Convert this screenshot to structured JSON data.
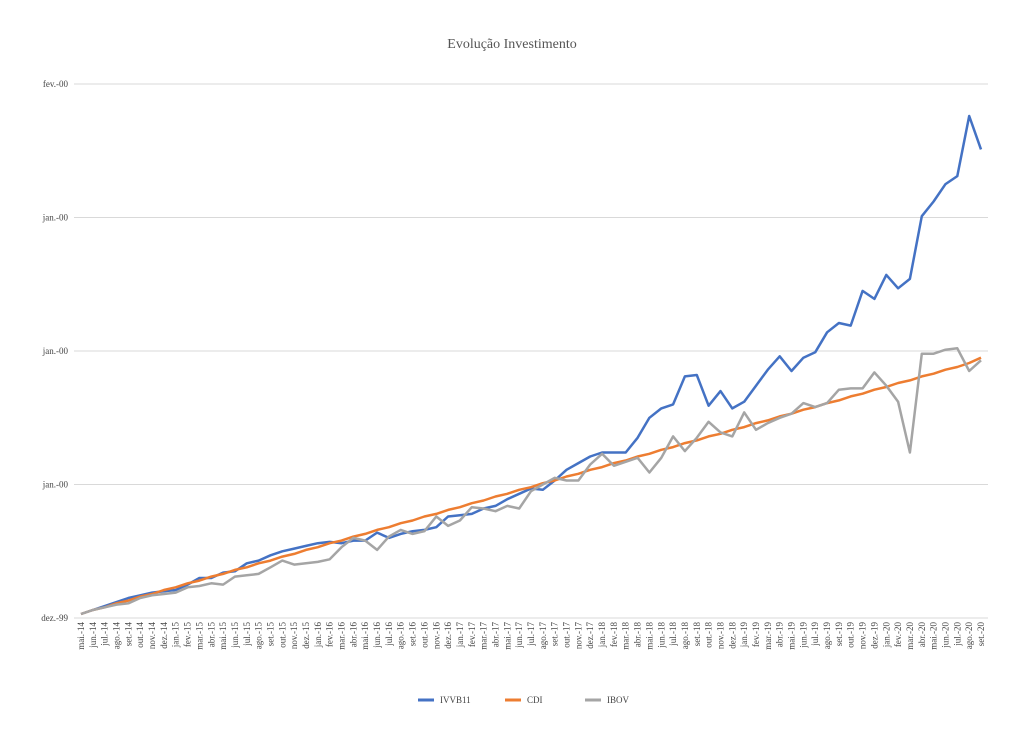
{
  "chart_data": {
    "type": "line",
    "title": "Evolução Investimento",
    "categories": [
      "mai.-14",
      "jun.-14",
      "jul.-14",
      "ago.-14",
      "set.-14",
      "out.-14",
      "nov.-14",
      "dez.-14",
      "jan.-15",
      "fev.-15",
      "mar.-15",
      "abr.-15",
      "mai.-15",
      "jun.-15",
      "jul.-15",
      "ago.-15",
      "set.-15",
      "out.-15",
      "nov.-15",
      "dez.-15",
      "jan.-16",
      "fev.-16",
      "mar.-16",
      "abr.-16",
      "mai.-16",
      "jun.-16",
      "jul.-16",
      "ago.-16",
      "set.-16",
      "out.-16",
      "nov.-16",
      "dez.-16",
      "jan.-17",
      "fev.-17",
      "mar.-17",
      "abr.-17",
      "mai.-17",
      "jun.-17",
      "jul.-17",
      "ago.-17",
      "set.-17",
      "out.-17",
      "nov.-17",
      "dez.-17",
      "jan.-18",
      "fev.-18",
      "mar.-18",
      "abr.-18",
      "mai.-18",
      "jun.-18",
      "jul.-18",
      "ago.-18",
      "set.-18",
      "out.-18",
      "nov.-18",
      "dez.-18",
      "jan.-19",
      "fev.-19",
      "mar.-19",
      "abr.-19",
      "mai.-19",
      "jun.-19",
      "jul.-19",
      "ago.-19",
      "set.-19",
      "out.-19",
      "nov.-19",
      "dez.-19",
      "jan.-20",
      "fev.-20",
      "mar.-20",
      "abr.-20",
      "mai.-20",
      "jun.-20",
      "jul.-20",
      "ago.-20",
      "set.-20"
    ],
    "series": [
      {
        "name": "IVVB11",
        "color": "#4472c4",
        "values": [
          0.3,
          0.6,
          0.9,
          1.2,
          1.5,
          1.7,
          1.9,
          2.0,
          2.1,
          2.5,
          3.0,
          3.0,
          3.4,
          3.5,
          4.1,
          4.3,
          4.7,
          5.0,
          5.2,
          5.4,
          5.6,
          5.7,
          5.6,
          5.8,
          5.8,
          6.4,
          6.0,
          6.3,
          6.5,
          6.6,
          6.8,
          7.6,
          7.7,
          7.8,
          8.2,
          8.4,
          8.9,
          9.3,
          9.7,
          9.6,
          10.3,
          11.1,
          11.6,
          12.1,
          12.4,
          12.4,
          12.4,
          13.5,
          15.0,
          15.7,
          16.0,
          18.1,
          18.2,
          15.9,
          17.0,
          15.7,
          16.2,
          17.4,
          18.6,
          19.6,
          18.5,
          19.5,
          19.9,
          21.4,
          22.1,
          21.9,
          24.5,
          23.9,
          25.7,
          24.7,
          25.4,
          30.1,
          31.2,
          32.5,
          33.1,
          37.6,
          35.1
        ]
      },
      {
        "name": "CDI",
        "color": "#ed7d31",
        "values": [
          0.3,
          0.6,
          0.8,
          1.1,
          1.3,
          1.6,
          1.8,
          2.1,
          2.3,
          2.6,
          2.8,
          3.1,
          3.3,
          3.6,
          3.8,
          4.1,
          4.3,
          4.6,
          4.8,
          5.1,
          5.3,
          5.6,
          5.8,
          6.1,
          6.3,
          6.6,
          6.8,
          7.1,
          7.3,
          7.6,
          7.8,
          8.1,
          8.3,
          8.6,
          8.8,
          9.1,
          9.3,
          9.6,
          9.8,
          10.1,
          10.3,
          10.6,
          10.8,
          11.1,
          11.3,
          11.6,
          11.8,
          12.1,
          12.3,
          12.6,
          12.8,
          13.1,
          13.3,
          13.6,
          13.8,
          14.1,
          14.3,
          14.6,
          14.8,
          15.1,
          15.3,
          15.6,
          15.8,
          16.1,
          16.3,
          16.6,
          16.8,
          17.1,
          17.3,
          17.6,
          17.8,
          18.1,
          18.3,
          18.6,
          18.8,
          19.1,
          19.5
        ]
      },
      {
        "name": "IBOV",
        "color": "#a5a5a5",
        "values": [
          0.3,
          0.6,
          0.8,
          1.0,
          1.1,
          1.5,
          1.7,
          1.8,
          1.9,
          2.3,
          2.4,
          2.6,
          2.5,
          3.1,
          3.2,
          3.3,
          3.8,
          4.3,
          4.0,
          4.1,
          4.2,
          4.4,
          5.3,
          6.0,
          5.8,
          5.1,
          6.1,
          6.6,
          6.3,
          6.5,
          7.6,
          6.9,
          7.3,
          8.3,
          8.2,
          8.0,
          8.4,
          8.2,
          9.5,
          10.0,
          10.5,
          10.3,
          10.3,
          11.5,
          12.3,
          11.4,
          11.7,
          12.0,
          10.9,
          12.0,
          13.6,
          12.5,
          13.5,
          14.7,
          13.9,
          13.6,
          15.4,
          14.1,
          14.6,
          15.0,
          15.3,
          16.1,
          15.8,
          16.1,
          17.1,
          17.2,
          17.2,
          18.4,
          17.4,
          16.2,
          12.4,
          19.8,
          19.8,
          20.1,
          20.2,
          18.5,
          19.3
        ]
      }
    ],
    "ylim": [
      0,
      40
    ],
    "yticks": [
      {
        "value": 0,
        "label": "dez.-99"
      },
      {
        "value": 10,
        "label": "jan.-00"
      },
      {
        "value": 20,
        "label": "jan.-00"
      },
      {
        "value": 30,
        "label": "jan.-00"
      },
      {
        "value": 40,
        "label": "fev.-00"
      }
    ],
    "grid": true,
    "legend": "bottom"
  }
}
